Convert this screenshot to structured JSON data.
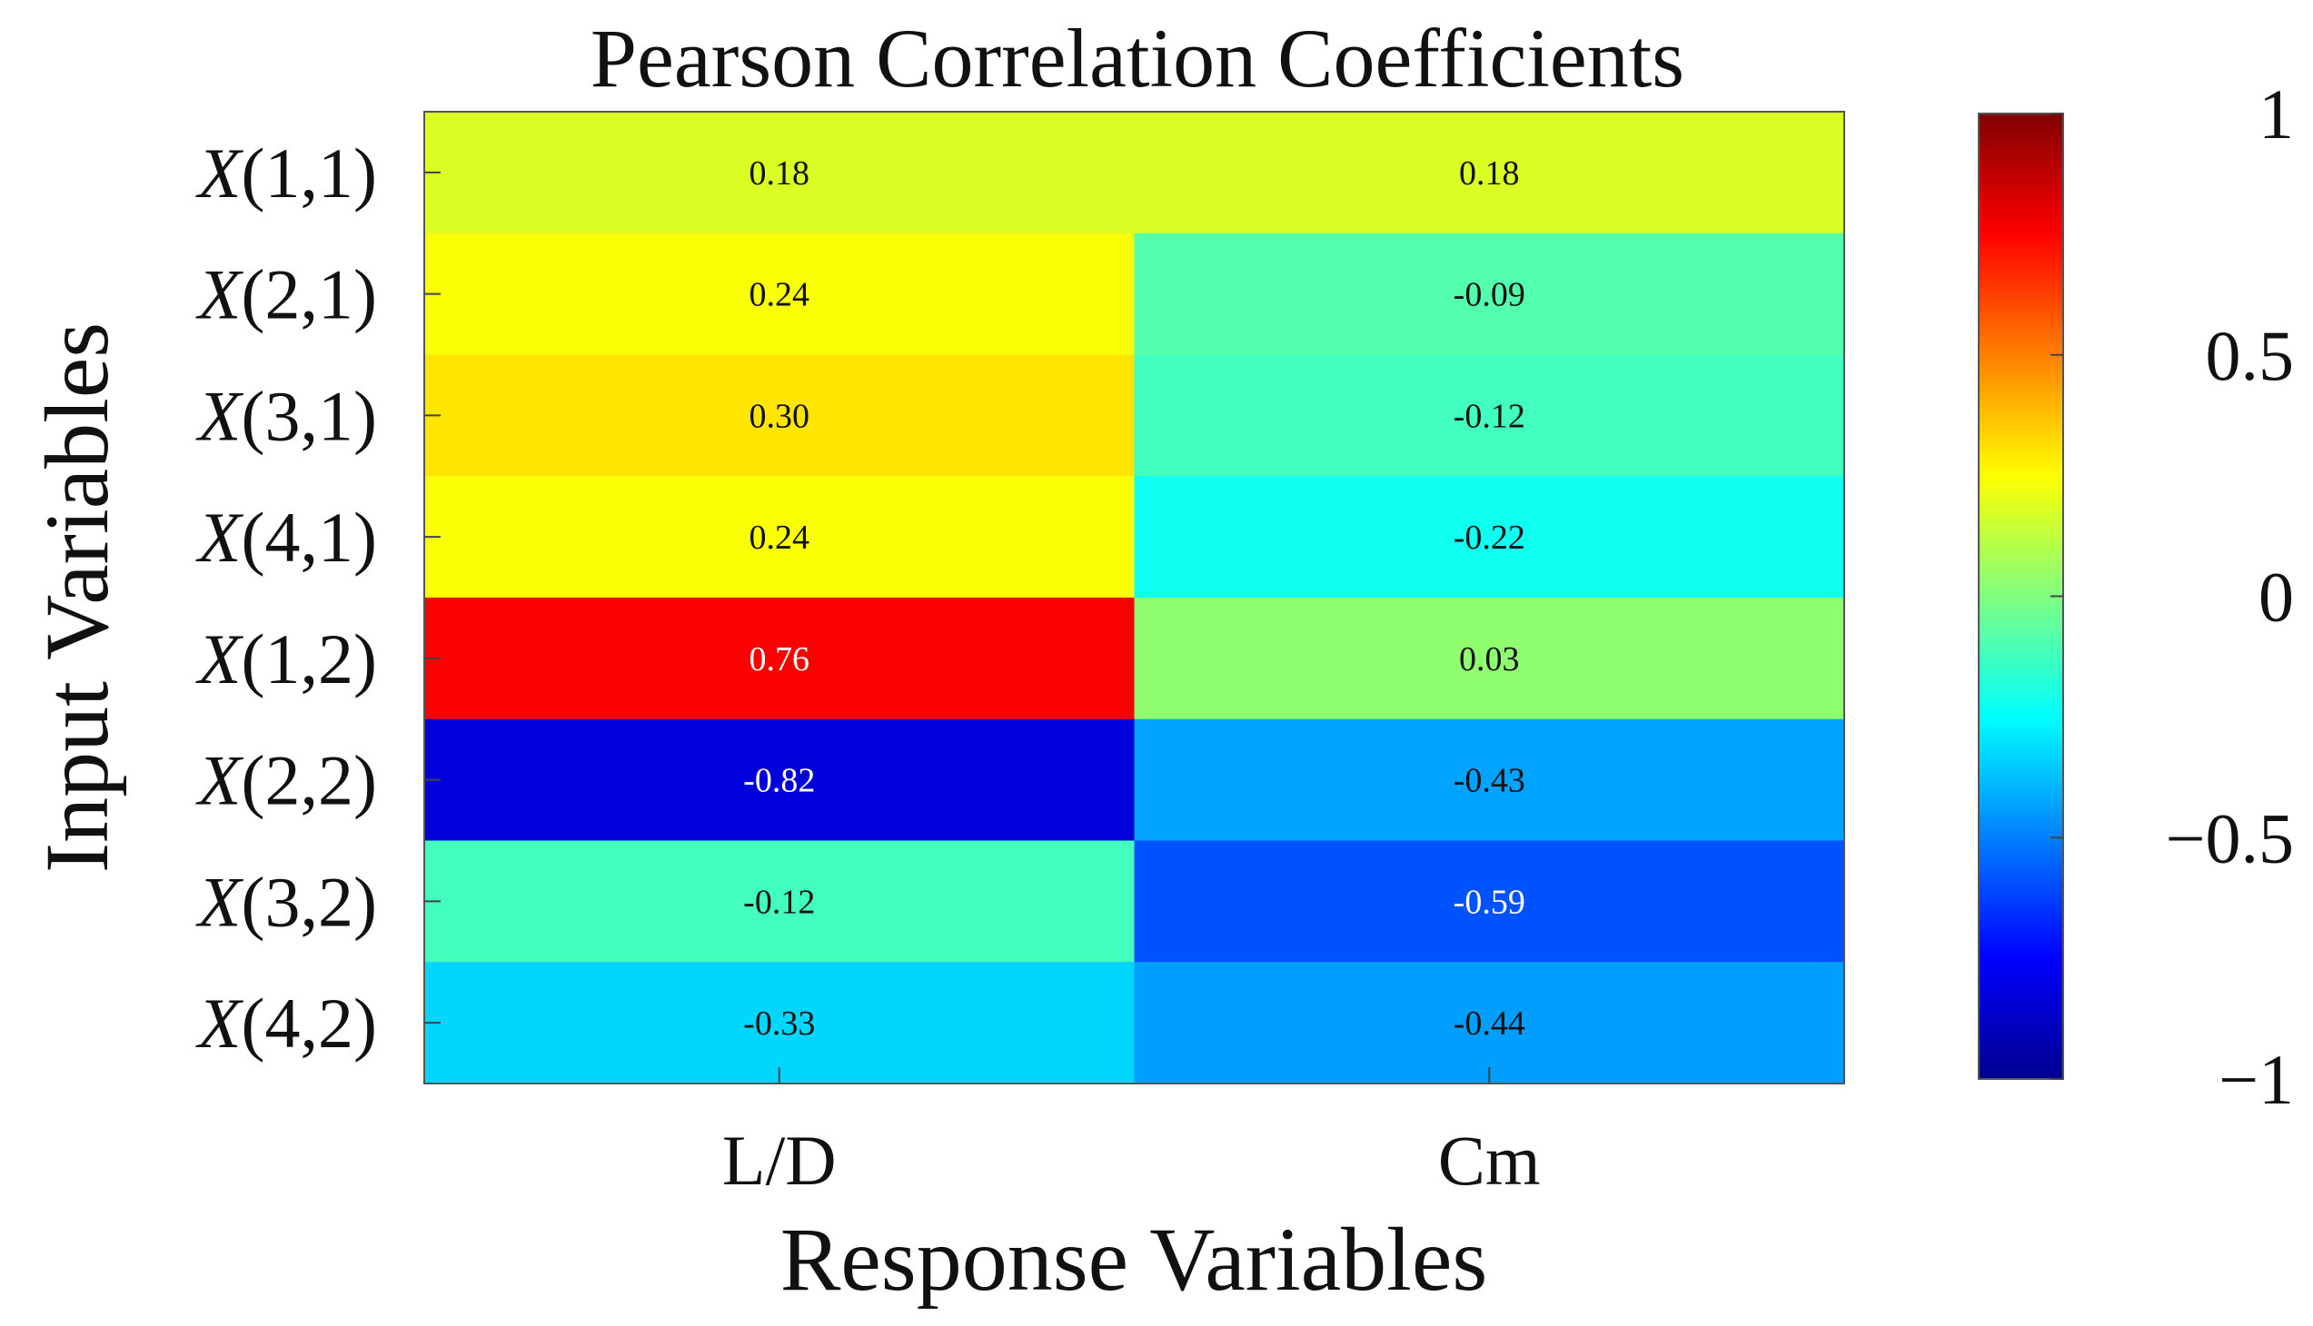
{
  "chart_data": {
    "type": "heatmap",
    "title": "Pearson Correlation Coefficients",
    "xlabel": "Response Variables",
    "ylabel": "Input Variables",
    "columns": [
      "L/D",
      "Cm"
    ],
    "rows": [
      {
        "var": "X",
        "index": "(1,1)"
      },
      {
        "var": "X",
        "index": "(2,1)"
      },
      {
        "var": "X",
        "index": "(3,1)"
      },
      {
        "var": "X",
        "index": "(4,1)"
      },
      {
        "var": "X",
        "index": "(1,2)"
      },
      {
        "var": "X",
        "index": "(2,2)"
      },
      {
        "var": "X",
        "index": "(3,2)"
      },
      {
        "var": "X",
        "index": "(4,2)"
      }
    ],
    "values": [
      [
        0.18,
        0.18
      ],
      [
        0.24,
        -0.09
      ],
      [
        0.3,
        -0.12
      ],
      [
        0.24,
        -0.22
      ],
      [
        0.76,
        0.03
      ],
      [
        -0.82,
        -0.43
      ],
      [
        -0.12,
        -0.59
      ],
      [
        -0.33,
        -0.44
      ]
    ],
    "value_labels": [
      [
        "0.18",
        "0.18"
      ],
      [
        "0.24",
        "-0.09"
      ],
      [
        "0.30",
        "-0.12"
      ],
      [
        "0.24",
        "-0.22"
      ],
      [
        "0.76",
        "0.03"
      ],
      [
        "-0.82",
        "-0.43"
      ],
      [
        "-0.12",
        "-0.59"
      ],
      [
        "-0.33",
        "-0.44"
      ]
    ],
    "colorbar": {
      "colormap": "jet",
      "range": [
        -1,
        1
      ],
      "ticks": [
        1,
        0.5,
        0,
        -0.5,
        -1
      ],
      "tick_labels": [
        "1",
        "0.5",
        "0",
        "−0.5",
        "−1"
      ]
    }
  }
}
